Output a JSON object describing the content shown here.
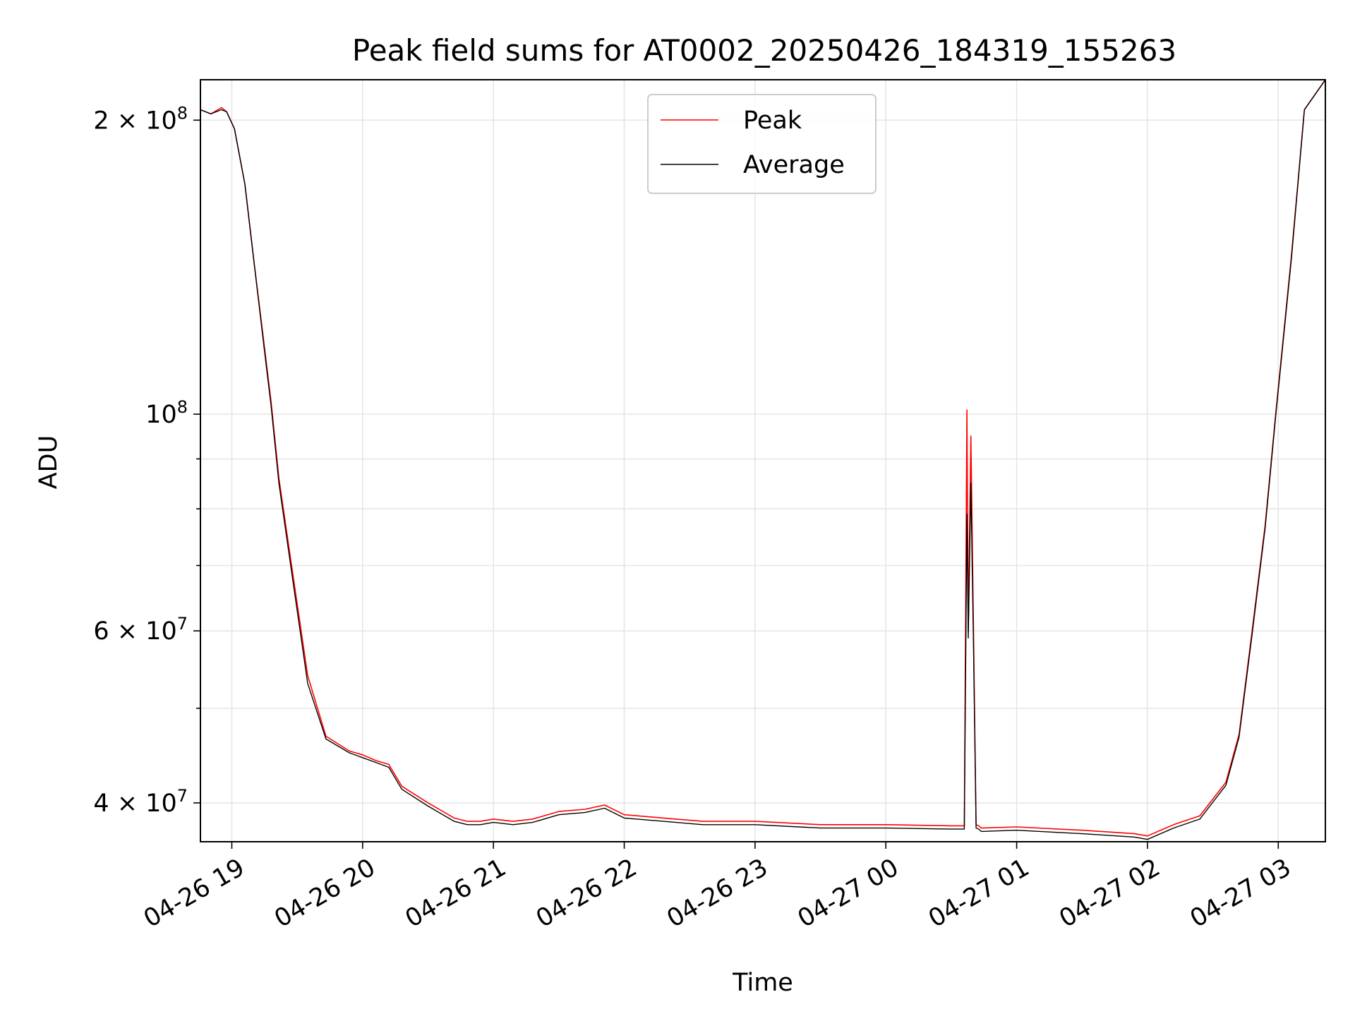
{
  "chart_data": {
    "type": "line",
    "title": "Peak field sums for AT0002_20250426_184319_155263",
    "xlabel": "Time",
    "ylabel": "ADU",
    "yscale": "log",
    "grid": true,
    "legend_position": "top-center",
    "x_range_hours": [
      -0.24,
      8.36
    ],
    "xlim": [
      "2025-04-26 18:45:36",
      "2025-04-27 03:21:36"
    ],
    "ylim": [
      36500000,
      220000000
    ],
    "x_ticks": [
      {
        "value_hours": 0,
        "label": "04-26 19"
      },
      {
        "value_hours": 1,
        "label": "04-26 20"
      },
      {
        "value_hours": 2,
        "label": "04-26 21"
      },
      {
        "value_hours": 3,
        "label": "04-26 22"
      },
      {
        "value_hours": 4,
        "label": "04-26 23"
      },
      {
        "value_hours": 5,
        "label": "04-27 00"
      },
      {
        "value_hours": 6,
        "label": "04-27 01"
      },
      {
        "value_hours": 7,
        "label": "04-27 02"
      },
      {
        "value_hours": 8,
        "label": "04-27 03"
      }
    ],
    "y_major_ticks": [
      {
        "value": 40000000,
        "label": "4 × 10",
        "exp": "7"
      },
      {
        "value": 60000000,
        "label": "6 × 10",
        "exp": "7"
      },
      {
        "value": 100000000,
        "label": "10",
        "exp": "8"
      },
      {
        "value": 200000000,
        "label": "2 × 10",
        "exp": "8"
      }
    ],
    "y_minor_ticks": [
      50000000,
      70000000,
      80000000,
      90000000
    ],
    "series": [
      {
        "name": "Peak",
        "color": "#ff0000",
        "x_hours": [
          -0.24,
          -0.16,
          -0.08,
          -0.04,
          0.02,
          0.1,
          0.17,
          0.25,
          0.3,
          0.36,
          0.45,
          0.58,
          0.72,
          0.9,
          1.0,
          1.1,
          1.2,
          1.3,
          1.5,
          1.7,
          1.8,
          1.9,
          2.0,
          2.15,
          2.3,
          2.5,
          2.7,
          2.85,
          3.0,
          3.3,
          3.6,
          4.0,
          4.5,
          5.0,
          5.5,
          5.6,
          5.62,
          5.63,
          5.65,
          5.67,
          5.69,
          5.71,
          5.73,
          6.0,
          6.5,
          6.9,
          7.0,
          7.2,
          7.4,
          7.6,
          7.7,
          7.8,
          7.9,
          7.98,
          8.1,
          8.2,
          8.36
        ],
        "y": [
          205000000,
          203000000,
          206000000,
          204000000,
          196000000,
          172000000,
          143000000,
          117000000,
          103000000,
          86000000,
          71000000,
          54000000,
          46800000,
          45200000,
          44800000,
          44200000,
          43800000,
          41600000,
          40000000,
          38600000,
          38300000,
          38300000,
          38500000,
          38300000,
          38500000,
          39200000,
          39400000,
          39800000,
          38900000,
          38600000,
          38300000,
          38300000,
          38000000,
          38000000,
          37900000,
          37900000,
          101000000,
          60000000,
          95000000,
          60000000,
          38000000,
          37900000,
          37700000,
          37800000,
          37500000,
          37200000,
          37000000,
          38000000,
          38800000,
          42000000,
          47000000,
          60000000,
          77000000,
          100000000,
          145000000,
          205000000,
          220000000
        ]
      },
      {
        "name": "Average",
        "color": "#000000",
        "x_hours": [
          -0.24,
          -0.16,
          -0.08,
          -0.04,
          0.02,
          0.1,
          0.17,
          0.25,
          0.3,
          0.36,
          0.45,
          0.58,
          0.72,
          0.9,
          1.0,
          1.1,
          1.2,
          1.3,
          1.5,
          1.7,
          1.8,
          1.9,
          2.0,
          2.15,
          2.3,
          2.5,
          2.7,
          2.85,
          3.0,
          3.3,
          3.6,
          4.0,
          4.5,
          5.0,
          5.5,
          5.6,
          5.62,
          5.63,
          5.65,
          5.67,
          5.69,
          5.71,
          5.73,
          6.0,
          6.5,
          6.9,
          7.0,
          7.2,
          7.4,
          7.6,
          7.7,
          7.8,
          7.9,
          7.98,
          8.1,
          8.2,
          8.36
        ],
        "y": [
          205000000,
          203000000,
          205000000,
          204000000,
          196000000,
          172000000,
          143000000,
          116000000,
          102000000,
          85000000,
          70000000,
          53000000,
          46500000,
          45000000,
          44500000,
          44000000,
          43500000,
          41300000,
          39700000,
          38300000,
          38000000,
          38000000,
          38200000,
          38000000,
          38200000,
          38900000,
          39100000,
          39500000,
          38600000,
          38300000,
          38000000,
          38000000,
          37700000,
          37700000,
          37600000,
          37600000,
          79000000,
          59000000,
          85000000,
          58000000,
          37700000,
          37600000,
          37400000,
          37500000,
          37200000,
          36900000,
          36700000,
          37700000,
          38500000,
          41700000,
          46700000,
          59500000,
          76500000,
          99500000,
          144000000,
          205000000,
          220000000
        ]
      }
    ]
  }
}
